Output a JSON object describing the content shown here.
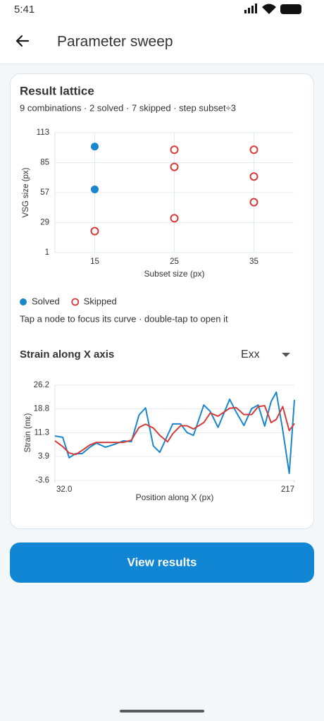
{
  "status": {
    "time": "5:41"
  },
  "header": {
    "title": "Parameter sweep"
  },
  "card": {
    "title": "Result lattice",
    "subtitle": "9 combinations · 2 solved · 7 skipped · step subset÷3",
    "hint": "Tap a node to focus its curve · double-tap to open it",
    "section_title": "Strain along X axis",
    "selector": "Exx"
  },
  "button": {
    "label": "View results"
  },
  "chart_data": [
    {
      "type": "scatter",
      "x_label": "Subset size (px)",
      "y_label": "VSG size (px)",
      "xlim": [
        10,
        40
      ],
      "ylim": [
        1,
        113
      ],
      "xticks": [
        15,
        25,
        35
      ],
      "yticks": [
        1,
        29,
        57,
        85,
        113
      ],
      "grid": "both",
      "series": [
        {
          "name": "Solved",
          "color": "#1a87cc",
          "marker": "filled",
          "x": [
            15,
            15
          ],
          "values": [
            100,
            60
          ]
        },
        {
          "name": "Skipped",
          "color": "#d43b3b",
          "marker": "hollow",
          "x": [
            15,
            25,
            25,
            25,
            35,
            35,
            35
          ],
          "values": [
            21,
            97,
            81,
            33,
            97,
            72,
            48
          ]
        }
      ]
    },
    {
      "type": "line",
      "x_label": "Position along X (px)",
      "y_label": "Strain (mε)",
      "xlim": [
        32,
        217
      ],
      "ylim": [
        -3.6,
        26.2
      ],
      "xticks": [
        {
          "value": 32,
          "label": "32.0"
        },
        217
      ],
      "yticks": [
        -3.6,
        3.9,
        11.3,
        18.8,
        26.2
      ],
      "grid": "y",
      "x": [
        32,
        38,
        43,
        48,
        53,
        59,
        64,
        71,
        78,
        85,
        91,
        97,
        102,
        108,
        113,
        119,
        123,
        129,
        134,
        139,
        147,
        152,
        158,
        167,
        172,
        178,
        184,
        189,
        194,
        199,
        203,
        208,
        213,
        217
      ],
      "series": [
        {
          "color": "#1a87cc",
          "values": [
            10.3,
            9.9,
            3.5,
            4.8,
            4.8,
            6.8,
            8.1,
            6.8,
            7.7,
            8.8,
            8.5,
            16.9,
            19.1,
            7.2,
            5.2,
            10.5,
            14.1,
            14.1,
            11.4,
            10.5,
            20.0,
            18.0,
            13.0,
            21.8,
            17.8,
            13.6,
            18.9,
            20.0,
            13.4,
            21.1,
            24.0,
            12.1,
            -1.4,
            21.6
          ]
        },
        {
          "color": "#d43b3b",
          "values": [
            8.8,
            7.0,
            5.0,
            4.5,
            5.8,
            7.5,
            8.3,
            8.3,
            8.3,
            8.3,
            9.0,
            13.0,
            14.0,
            12.8,
            10.5,
            8.5,
            11.0,
            13.5,
            13.5,
            12.5,
            14.5,
            17.5,
            16.5,
            19.0,
            19.2,
            17.0,
            17.0,
            19.5,
            19.8,
            14.5,
            15.5,
            19.5,
            12.0,
            14.2
          ]
        }
      ]
    }
  ]
}
